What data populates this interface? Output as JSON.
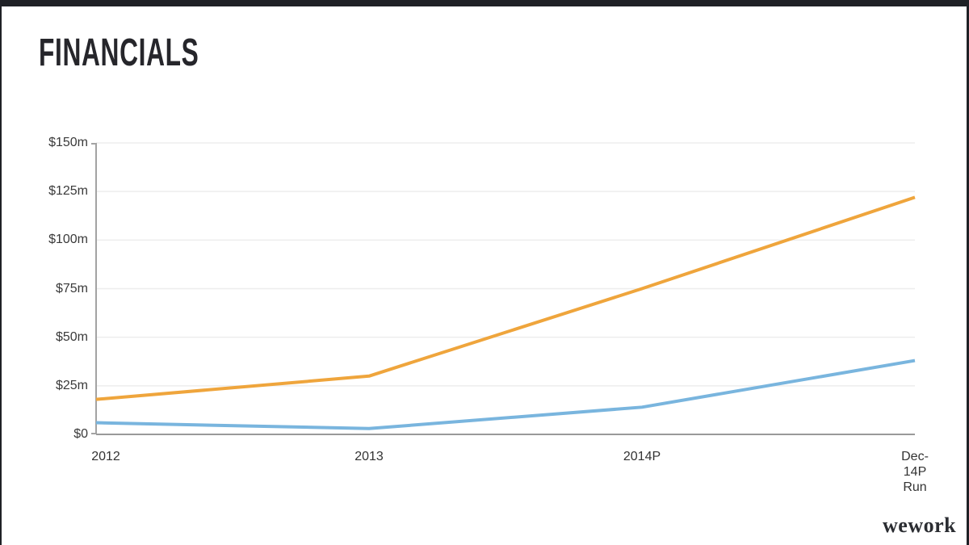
{
  "slide": {
    "title": "FINANCIALS",
    "logo_text": "wework"
  },
  "colors": {
    "frame_border": "#1f2126",
    "slide_background": "#ffffff",
    "title_text": "#26262b",
    "orange_line": "#efa53c",
    "blue_line": "#79b5de",
    "gridline": "#ededed",
    "y_axis": "#a3a3a3",
    "x_axis": "#9a9a9a",
    "tick_label": "#3a3a3a"
  },
  "chart_data": {
    "type": "line",
    "title": "",
    "xlabel": "",
    "ylabel": "",
    "categories": [
      "2012",
      "2013",
      "2014P",
      "Dec-14P Run"
    ],
    "x_tick_lines": [
      [
        "2012"
      ],
      [
        "2013"
      ],
      [
        "2014P"
      ],
      [
        "Dec-14P",
        "Run"
      ]
    ],
    "series": [
      {
        "name": "orange",
        "color": "#efa53c",
        "values": [
          18,
          30,
          75,
          122
        ]
      },
      {
        "name": "blue",
        "color": "#79b5de",
        "values": [
          6,
          3,
          14,
          38
        ]
      }
    ],
    "ylim": [
      0,
      150
    ],
    "y_tick_step": 25,
    "y_tick_labels": [
      "$150m",
      "$125m",
      "$100m",
      "$75m",
      "$50m",
      "$25m",
      "$0"
    ],
    "grid": true,
    "legend": false,
    "line_width": 4
  }
}
